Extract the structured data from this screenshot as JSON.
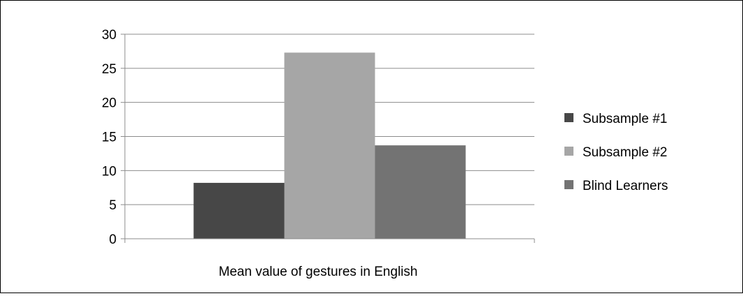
{
  "chart_data": {
    "type": "bar",
    "title": "",
    "xlabel": "Mean value of gestures in English",
    "ylabel": "",
    "ylim": [
      0,
      30
    ],
    "yticks": [
      0,
      5,
      10,
      15,
      20,
      25,
      30
    ],
    "grid": true,
    "legend_position": "right",
    "categories": [
      "Mean value of gestures in English"
    ],
    "series": [
      {
        "name": "Subsample #1",
        "values": [
          8.2
        ],
        "color": "#474747"
      },
      {
        "name": "Subsample #2",
        "values": [
          27.3
        ],
        "color": "#a6a6a6"
      },
      {
        "name": "Blind Learners",
        "values": [
          13.7
        ],
        "color": "#737373"
      }
    ]
  }
}
